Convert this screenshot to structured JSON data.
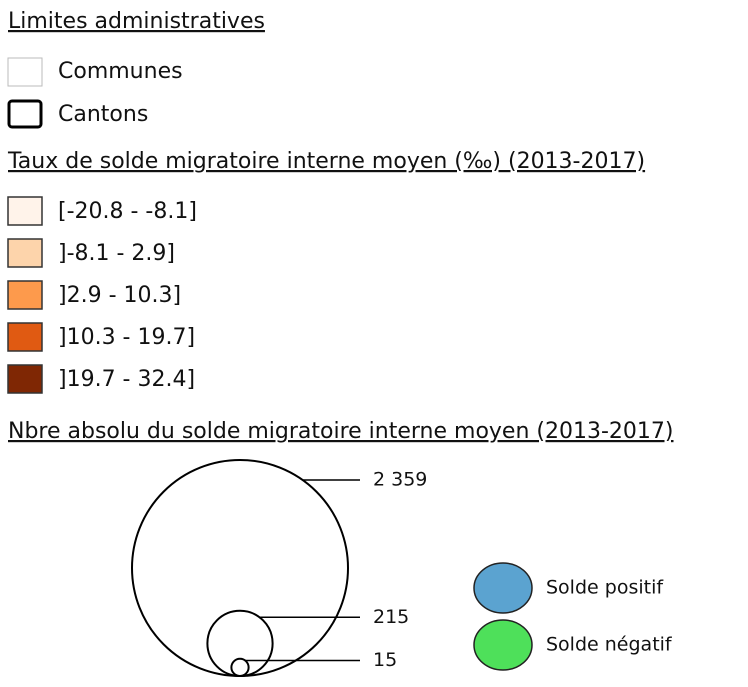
{
  "admin": {
    "title": "Limites administratives",
    "items": [
      "Communes",
      "Cantons"
    ]
  },
  "rate": {
    "title": "Taux de solde migratoire interne moyen (‰) (2013-2017)",
    "classes": [
      {
        "label": "[-20.8 - -8.1]",
        "color": "#fff3ea"
      },
      {
        "label": "]-8.1 - 2.9]",
        "color": "#fdd4ab"
      },
      {
        "label": "]2.9 - 10.3]",
        "color": "#fd9a4c"
      },
      {
        "label": "]10.3 - 19.7]",
        "color": "#e05a12"
      },
      {
        "label": "]19.7 - 32.4]",
        "color": "#7f2704"
      }
    ]
  },
  "absolute": {
    "title": "Nbre absolu du solde migratoire interne moyen (2013-2017)",
    "circles": [
      {
        "value": 2359,
        "label": "2 359"
      },
      {
        "value": 215,
        "label": "215"
      },
      {
        "value": 15,
        "label": "15"
      }
    ],
    "signs": [
      {
        "label": "Solde positif",
        "color": "#5ba3d0"
      },
      {
        "label": "Solde négatif",
        "color": "#4ee05a"
      }
    ]
  }
}
